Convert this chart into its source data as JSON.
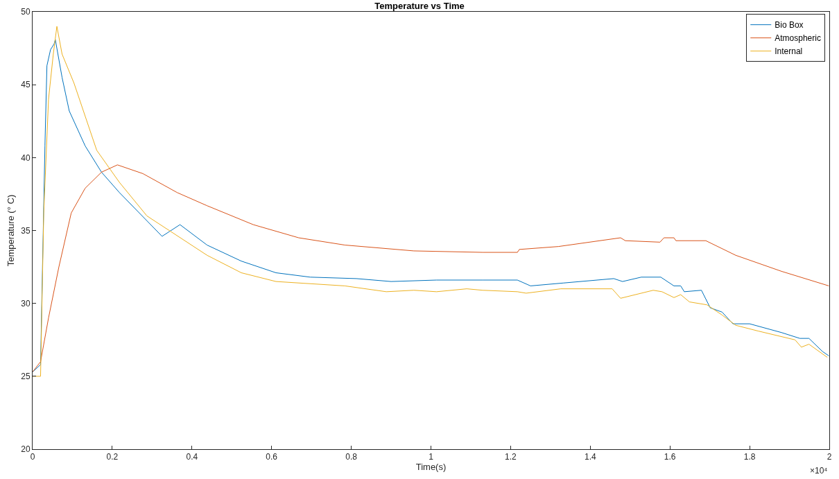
{
  "chart_data": {
    "type": "line",
    "title": "Temperature vs Time",
    "xlabel": "Time(s)",
    "ylabel": "Temperature (° C)",
    "xlim": [
      0,
      2
    ],
    "xticks": [
      0,
      0.2,
      0.4,
      0.6,
      0.8,
      1,
      1.2,
      1.4,
      1.6,
      1.8,
      2
    ],
    "ylim": [
      20,
      50
    ],
    "yticks": [
      20,
      25,
      30,
      35,
      40,
      45,
      50
    ],
    "annotations": [
      "×10⁴"
    ],
    "grid": false,
    "legend": "top right",
    "marker": "none",
    "line_style": "solid",
    "series": [
      {
        "name": "Bio Box",
        "color": "#0072bd",
        "x": [
          0,
          0.02,
          0.031,
          0.036,
          0.045,
          0.054,
          0.057,
          0.074,
          0.092,
          0.132,
          0.173,
          0.218,
          0.325,
          0.37,
          0.438,
          0.524,
          0.611,
          0.697,
          0.813,
          0.9,
          1.014,
          1.13,
          1.217,
          1.25,
          1.333,
          1.459,
          1.481,
          1.528,
          1.577,
          1.61,
          1.627,
          1.636,
          1.679,
          1.701,
          1.731,
          1.758,
          1.8,
          1.88,
          1.926,
          1.949,
          1.983,
          1.999
        ],
        "values": [
          25.3,
          25.8,
          40.8,
          46.3,
          47.4,
          47.8,
          48.1,
          45.5,
          43.2,
          40.8,
          39.0,
          37.6,
          34.6,
          35.4,
          34.0,
          32.9,
          32.1,
          31.8,
          31.7,
          31.5,
          31.6,
          31.6,
          31.6,
          31.2,
          31.4,
          31.7,
          31.5,
          31.8,
          31.8,
          31.2,
          31.2,
          30.8,
          30.9,
          29.7,
          29.4,
          28.6,
          28.6,
          28.0,
          27.6,
          27.6,
          26.7,
          26.4
        ]
      },
      {
        "name": "Atmospheric",
        "color": "#d95319",
        "x": [
          0,
          0.02,
          0.04,
          0.066,
          0.097,
          0.132,
          0.173,
          0.213,
          0.277,
          0.363,
          0.438,
          0.554,
          0.668,
          0.784,
          0.957,
          1.13,
          1.217,
          1.222,
          1.32,
          1.476,
          1.488,
          1.575,
          1.585,
          1.61,
          1.615,
          1.69,
          1.765,
          1.88,
          1.999
        ],
        "values": [
          25.3,
          26.0,
          29.0,
          32.5,
          36.2,
          37.9,
          39.0,
          39.5,
          38.9,
          37.6,
          36.7,
          35.4,
          34.5,
          34.0,
          33.6,
          33.5,
          33.5,
          33.7,
          33.9,
          34.5,
          34.3,
          34.2,
          34.5,
          34.5,
          34.3,
          34.3,
          33.3,
          32.2,
          31.2
        ]
      },
      {
        "name": "Internal",
        "color": "#edb120",
        "x": [
          0,
          0.02,
          0.028,
          0.04,
          0.052,
          0.061,
          0.074,
          0.104,
          0.161,
          0.218,
          0.287,
          0.438,
          0.524,
          0.611,
          0.784,
          0.888,
          0.957,
          1.014,
          1.09,
          1.13,
          1.217,
          1.239,
          1.326,
          1.455,
          1.476,
          1.558,
          1.58,
          1.61,
          1.627,
          1.649,
          1.693,
          1.731,
          1.765,
          1.822,
          1.914,
          1.93,
          1.949,
          1.995
        ],
        "values": [
          25.0,
          25.0,
          36.2,
          44.0,
          47.1,
          49.0,
          47.1,
          45.1,
          40.5,
          38.3,
          36.0,
          33.3,
          32.1,
          31.5,
          31.2,
          30.8,
          30.9,
          30.8,
          31.0,
          30.9,
          30.8,
          30.7,
          31.0,
          31.0,
          30.35,
          30.9,
          30.8,
          30.4,
          30.6,
          30.1,
          29.9,
          29.2,
          28.5,
          28.1,
          27.5,
          27.0,
          27.2,
          26.3
        ]
      }
    ]
  }
}
